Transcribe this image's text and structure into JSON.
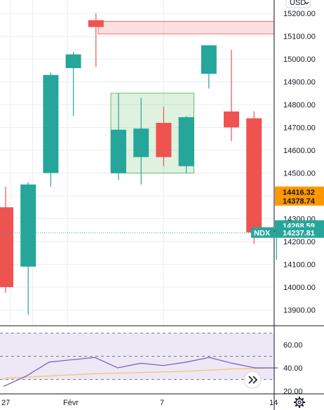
{
  "header": {
    "currency_label": "USD",
    "currency_chevron": "chevron-down-icon"
  },
  "colors": {
    "up": "#26a69a",
    "down": "#ef5350",
    "grid": "#e6eef5",
    "axis_text": "#131722",
    "rsi_line": "#7e57c2",
    "rsi_ma_line": "#f7c35a",
    "rsi_band": "#ede7f6",
    "orange_tag": "#ff9800",
    "teal_tag": "#26a69a"
  },
  "chart_data": {
    "type": "candlestick",
    "symbol": "NDX",
    "y_ticks": [
      "15200.00",
      "15100.00",
      "15000.00",
      "14900.00",
      "14800.00",
      "14700.00",
      "14600.00",
      "14500.00",
      "14400.00",
      "14300.00",
      "14200.00",
      "14100.00",
      "14000.00",
      "13900.00"
    ],
    "x_labels": [
      "27",
      "Févr",
      "7",
      "14"
    ],
    "ylim": [
      13820,
      15250
    ],
    "candles": [
      {
        "open": 14350,
        "high": 14440,
        "low": 13975,
        "close": 14000
      },
      {
        "open": 14090,
        "high": 14460,
        "low": 13880,
        "close": 14450
      },
      {
        "open": 14500,
        "high": 14940,
        "low": 14440,
        "close": 14930
      },
      {
        "open": 14960,
        "high": 15030,
        "low": 14750,
        "close": 15020
      },
      {
        "open": 15170,
        "high": 15200,
        "low": 14965,
        "close": 15140
      },
      {
        "open": 14500,
        "high": 14850,
        "low": 14470,
        "close": 14690
      },
      {
        "open": 14570,
        "high": 14830,
        "low": 14450,
        "close": 14695
      },
      {
        "open": 14720,
        "high": 14790,
        "low": 14530,
        "close": 14570
      },
      {
        "open": 14530,
        "high": 14750,
        "low": 14500,
        "close": 14745
      },
      {
        "open": 14935,
        "high": 15060,
        "low": 14870,
        "close": 15060
      },
      {
        "open": 14770,
        "high": 15040,
        "low": 14640,
        "close": 14700
      },
      {
        "open": 14740,
        "high": 14770,
        "low": 14190,
        "close": 14240
      },
      {
        "open": 14240,
        "high": 14270,
        "low": 14120,
        "close": 14250
      }
    ],
    "resistance_zone": {
      "low": 15110,
      "high": 15165
    },
    "consolidation_box": {
      "low": 14500,
      "high": 14850,
      "from_candle": 5,
      "to_candle": 8
    },
    "last_price_line": 14237.81,
    "price_tags": [
      {
        "value": "14416.32",
        "color": "orange"
      },
      {
        "value": "14378.74",
        "color": "orange"
      },
      {
        "value": "14268.59",
        "color": "teal"
      },
      {
        "value": "14237.81",
        "color": "teal",
        "prefix": "NDX"
      }
    ],
    "rsi": {
      "y_ticks": [
        "60.00",
        "40.00",
        "20.00"
      ],
      "ylim": [
        17,
        78
      ],
      "band": [
        30,
        70
      ],
      "levels": [
        70,
        50,
        30
      ],
      "line": [
        24,
        33,
        45,
        47,
        49,
        40,
        44,
        42,
        45,
        49,
        44,
        40,
        40
      ],
      "ma": [
        31,
        32,
        33,
        34,
        35,
        35.5,
        36,
        36.5,
        37,
        38,
        39,
        39.5,
        40
      ]
    }
  },
  "controls": {
    "scroll_right": "double-chevron-right-icon",
    "settings": "gear-icon"
  }
}
